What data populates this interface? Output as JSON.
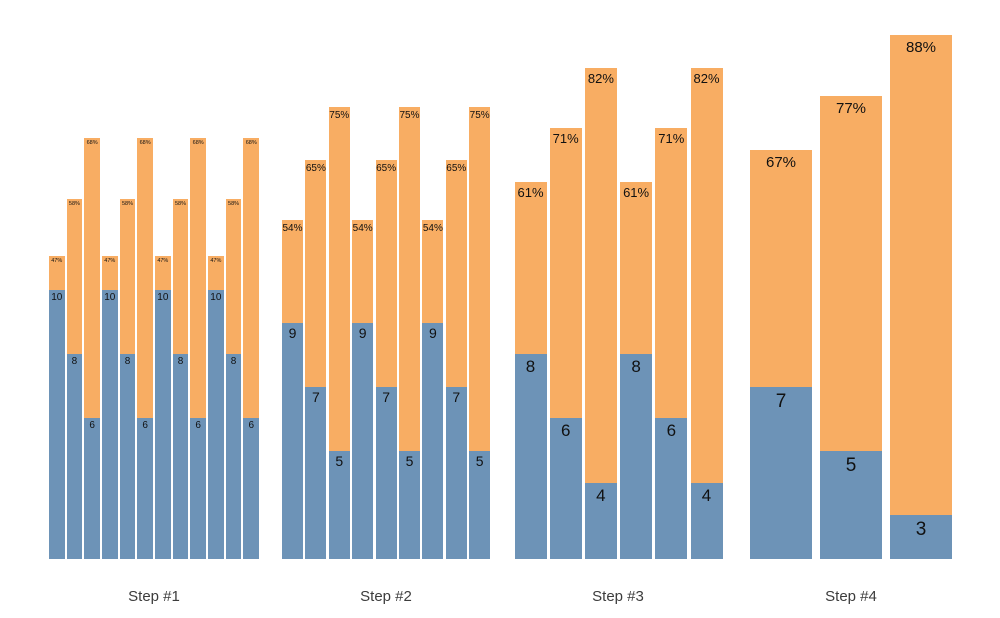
{
  "chart_data": {
    "type": "bar",
    "stacked": true,
    "title": "",
    "xlabel": "",
    "ylabel": "",
    "grid": false,
    "legend": "none",
    "colors": {
      "blue_segment": "#6D93B7",
      "orange_segment": "#F8AD63",
      "label_text": "#111111",
      "step_label_text": "#3C3C3C",
      "background": "#FFFFFF"
    },
    "description": "Funnel-style stacked bar chart: 4 step groups; each group repeats a triplet of bars. Blue bottom segment carries a number label, orange top segment carries a percent label at the bar top.",
    "steps": [
      {
        "label": "Step #1",
        "repeats": 4,
        "triplet": [
          {
            "value": "10",
            "pct": "47%"
          },
          {
            "value": "8",
            "pct": "58%"
          },
          {
            "value": "6",
            "pct": "68%"
          }
        ]
      },
      {
        "label": "Step #2",
        "repeats": 3,
        "triplet": [
          {
            "value": "9",
            "pct": "54%"
          },
          {
            "value": "7",
            "pct": "65%"
          },
          {
            "value": "5",
            "pct": "75%"
          }
        ]
      },
      {
        "label": "Step #3",
        "repeats": 2,
        "triplet": [
          {
            "value": "8",
            "pct": "61%"
          },
          {
            "value": "6",
            "pct": "71%"
          },
          {
            "value": "4",
            "pct": "82%"
          }
        ]
      },
      {
        "label": "Step #4",
        "repeats": 1,
        "triplet": [
          {
            "value": "7",
            "pct": "67%"
          },
          {
            "value": "5",
            "pct": "77%"
          },
          {
            "value": "3",
            "pct": "88%"
          }
        ]
      }
    ]
  }
}
